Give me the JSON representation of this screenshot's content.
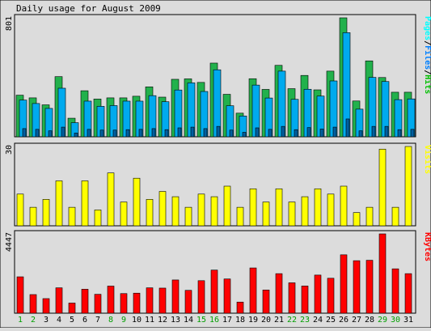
{
  "chart_data": {
    "type": "bar",
    "title": "Daily usage for August 2009",
    "categories": [
      "1",
      "2",
      "3",
      "4",
      "5",
      "6",
      "7",
      "8",
      "9",
      "10",
      "11",
      "12",
      "13",
      "14",
      "15",
      "16",
      "17",
      "18",
      "19",
      "20",
      "21",
      "22",
      "23",
      "24",
      "25",
      "26",
      "27",
      "28",
      "29",
      "30",
      "31"
    ],
    "weekend_days": [
      "1",
      "2",
      "8",
      "9",
      "15",
      "16",
      "22",
      "23",
      "29",
      "30"
    ],
    "panels": [
      {
        "id": "pages-files-hits",
        "ymax_label": "801",
        "ymax": 801,
        "legend": [
          {
            "text": "Pages",
            "color": "#00ffff"
          },
          {
            "text": "/",
            "color": "#000000"
          },
          {
            "text": "Files",
            "color": "#0080ff"
          },
          {
            "text": "/",
            "color": "#000000"
          },
          {
            "text": "Hits",
            "color": "#00c000"
          }
        ],
        "series": [
          {
            "name": "Hits",
            "color": "#22b14c",
            "values": [
              280,
              262,
              215,
              405,
              125,
              310,
              254,
              262,
              262,
              273,
              336,
              267,
              387,
              390,
              366,
              496,
              286,
              159,
              391,
              319,
              481,
              324,
              413,
              316,
              442,
              801,
              241,
              511,
              399,
              300,
              300
            ]
          },
          {
            "name": "Files",
            "color": "#00aaee",
            "values": [
              247,
              224,
              191,
              327,
              95,
              240,
              205,
              210,
              240,
              240,
              277,
              236,
              315,
              363,
              305,
              451,
              209,
              140,
              348,
              261,
              442,
              252,
              320,
              274,
              376,
              701,
              186,
              400,
              372,
              250,
              255
            ]
          },
          {
            "name": "Pages",
            "color": "#0060a0",
            "values": [
              55,
              50,
              40,
              65,
              25,
              50,
              45,
              45,
              48,
              50,
              55,
              48,
              60,
              65,
              55,
              70,
              45,
              30,
              60,
              50,
              70,
              48,
              62,
              52,
              65,
              120,
              40,
              70,
              70,
              48,
              50
            ]
          }
        ]
      },
      {
        "id": "visits",
        "ymax_label": "30",
        "ymax": 30,
        "legend": [
          {
            "text": "Visits",
            "color": "#ffff00"
          }
        ],
        "series": [
          {
            "name": "Visits",
            "color": "#ffff00",
            "values": [
              12,
              7,
              10,
              17,
              7,
              17,
              6,
              20,
              9,
              18,
              10,
              13,
              11,
              7,
              12,
              11,
              15,
              7,
              14,
              9,
              14,
              9,
              11,
              14,
              12,
              15,
              5,
              7,
              29,
              7,
              30
            ]
          }
        ]
      },
      {
        "id": "kbytes",
        "ymax_label": "4447",
        "ymax": 4447,
        "legend": [
          {
            "text": "KBytes",
            "color": "#ff0000"
          }
        ],
        "series": [
          {
            "name": "KBytes",
            "color": "#ff0000",
            "values": [
              2040,
              1044,
              818,
              1424,
              568,
              1344,
              1060,
              1520,
              1100,
              1124,
              1424,
              1408,
              1864,
              1282,
              1824,
              2418,
              1920,
              624,
              2538,
              1302,
              2218,
              1704,
              1524,
              2138,
              1960,
              3274,
              2944,
              2968,
              4447,
              2488,
              2218
            ]
          }
        ]
      }
    ]
  }
}
